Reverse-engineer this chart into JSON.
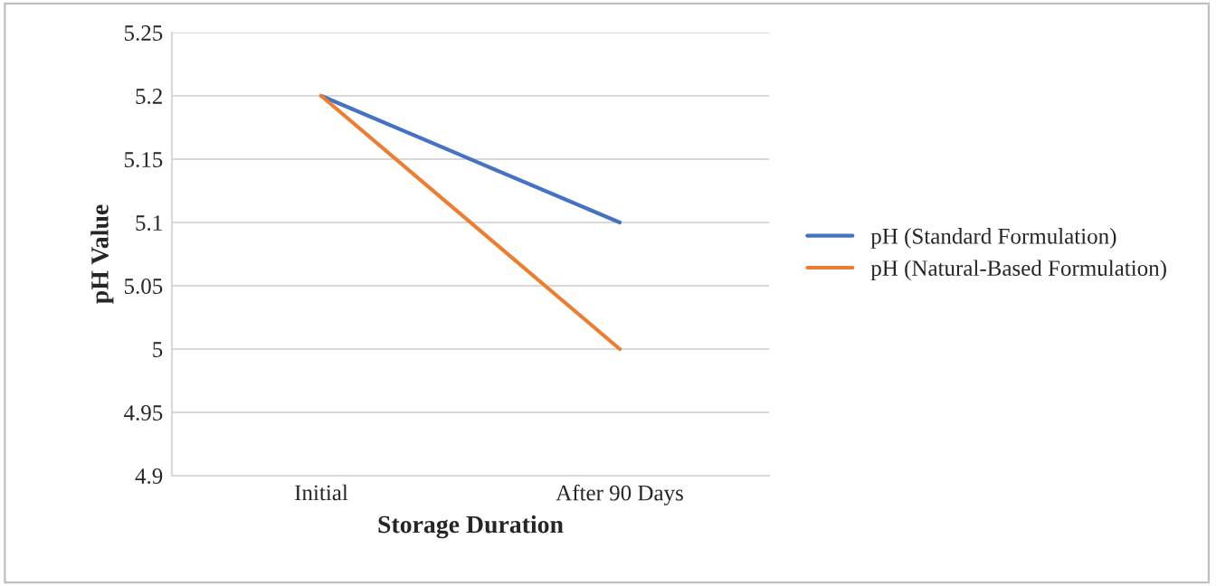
{
  "chart_data": {
    "type": "line",
    "xlabel": "Storage Duration",
    "ylabel": "pH Value",
    "categories": [
      "Initial",
      "After 90 Days"
    ],
    "series": [
      {
        "name": "pH (Standard Formulation)",
        "color": "#4472c4",
        "values": [
          5.2,
          5.1
        ]
      },
      {
        "name": "pH (Natural-Based Formulation)",
        "color": "#ed7d31",
        "values": [
          5.2,
          5.0
        ]
      }
    ],
    "ylim": [
      4.9,
      5.25
    ],
    "yticks": [
      4.9,
      4.95,
      5,
      5.05,
      5.1,
      5.15,
      5.2,
      5.25
    ],
    "grid": "y",
    "legend": "right",
    "marker": "none",
    "line_style": "solid"
  }
}
